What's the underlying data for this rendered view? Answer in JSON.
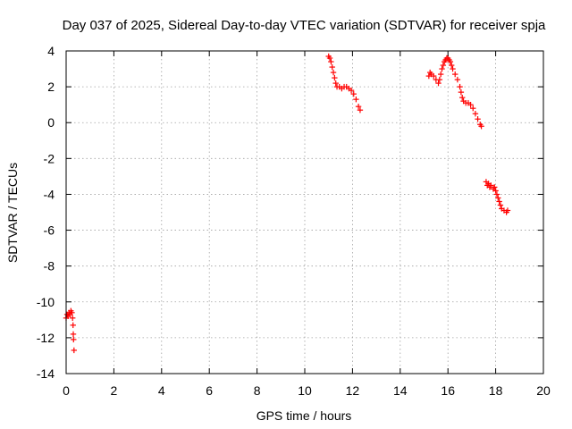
{
  "chart_data": {
    "type": "scatter",
    "title": "Day 037 of 2025, Sidereal Day-to-day VTEC variation (SDTVAR) for receiver spja",
    "xlabel": "GPS time / hours",
    "ylabel": "SDTVAR / TECUs",
    "xlim": [
      0,
      20
    ],
    "ylim": [
      -14,
      4
    ],
    "grid": true,
    "marker_color": "#ff0000",
    "x_ticks": [
      {
        "value": 0,
        "label": "0"
      },
      {
        "value": 2,
        "label": "2"
      },
      {
        "value": 4,
        "label": "4"
      },
      {
        "value": 6,
        "label": "6"
      },
      {
        "value": 8,
        "label": "8"
      },
      {
        "value": 10,
        "label": "10"
      },
      {
        "value": 12,
        "label": "12"
      },
      {
        "value": 14,
        "label": "14"
      },
      {
        "value": 16,
        "label": "16"
      },
      {
        "value": 18,
        "label": "18"
      },
      {
        "value": 20,
        "label": "20"
      }
    ],
    "y_ticks": [
      {
        "value": 4,
        "label": "4"
      },
      {
        "value": 2,
        "label": "2"
      },
      {
        "value": 0,
        "label": "0"
      },
      {
        "value": -2,
        "label": "-2"
      },
      {
        "value": -4,
        "label": "-4"
      },
      {
        "value": -6,
        "label": "-6"
      },
      {
        "value": -8,
        "label": "-8"
      },
      {
        "value": -10,
        "label": "-10"
      },
      {
        "value": -12,
        "label": "-12"
      },
      {
        "value": -14,
        "label": "-14"
      }
    ],
    "series": [
      {
        "name": "SDTVAR",
        "points": [
          [
            0.0,
            -10.9
          ],
          [
            0.04,
            -10.7
          ],
          [
            0.08,
            -10.8
          ],
          [
            0.12,
            -10.6
          ],
          [
            0.16,
            -10.7
          ],
          [
            0.2,
            -10.5
          ],
          [
            0.24,
            -10.6
          ],
          [
            0.27,
            -10.9
          ],
          [
            0.29,
            -11.3
          ],
          [
            0.3,
            -11.8
          ],
          [
            0.31,
            -12.1
          ],
          [
            0.33,
            -12.7
          ],
          [
            11.0,
            3.7
          ],
          [
            11.05,
            3.6
          ],
          [
            11.1,
            3.4
          ],
          [
            11.15,
            3.1
          ],
          [
            11.2,
            2.8
          ],
          [
            11.25,
            2.5
          ],
          [
            11.3,
            2.2
          ],
          [
            11.35,
            2.0
          ],
          [
            11.45,
            2.0
          ],
          [
            11.55,
            1.9
          ],
          [
            11.65,
            2.0
          ],
          [
            11.75,
            2.0
          ],
          [
            11.85,
            1.9
          ],
          [
            11.95,
            1.8
          ],
          [
            12.05,
            1.6
          ],
          [
            12.15,
            1.3
          ],
          [
            12.25,
            0.9
          ],
          [
            12.32,
            0.7
          ],
          [
            15.2,
            2.6
          ],
          [
            15.25,
            2.8
          ],
          [
            15.3,
            2.7
          ],
          [
            15.4,
            2.6
          ],
          [
            15.5,
            2.4
          ],
          [
            15.6,
            2.2
          ],
          [
            15.65,
            2.4
          ],
          [
            15.7,
            2.7
          ],
          [
            15.75,
            3.0
          ],
          [
            15.8,
            3.2
          ],
          [
            15.85,
            3.4
          ],
          [
            15.9,
            3.5
          ],
          [
            15.95,
            3.6
          ],
          [
            16.0,
            3.6
          ],
          [
            16.05,
            3.5
          ],
          [
            16.1,
            3.4
          ],
          [
            16.15,
            3.2
          ],
          [
            16.2,
            3.0
          ],
          [
            16.3,
            2.7
          ],
          [
            16.4,
            2.4
          ],
          [
            16.5,
            2.0
          ],
          [
            16.55,
            1.7
          ],
          [
            16.6,
            1.4
          ],
          [
            16.65,
            1.2
          ],
          [
            16.75,
            1.1
          ],
          [
            16.85,
            1.1
          ],
          [
            16.95,
            1.0
          ],
          [
            17.05,
            0.8
          ],
          [
            17.15,
            0.5
          ],
          [
            17.25,
            0.2
          ],
          [
            17.35,
            -0.1
          ],
          [
            17.4,
            -0.2
          ],
          [
            17.6,
            -3.3
          ],
          [
            17.65,
            -3.5
          ],
          [
            17.7,
            -3.4
          ],
          [
            17.75,
            -3.6
          ],
          [
            17.8,
            -3.5
          ],
          [
            17.9,
            -3.7
          ],
          [
            17.95,
            -3.6
          ],
          [
            18.0,
            -3.8
          ],
          [
            18.05,
            -4.0
          ],
          [
            18.1,
            -4.2
          ],
          [
            18.15,
            -4.4
          ],
          [
            18.2,
            -4.6
          ],
          [
            18.25,
            -4.8
          ],
          [
            18.35,
            -4.9
          ],
          [
            18.45,
            -5.0
          ],
          [
            18.5,
            -4.9
          ]
        ]
      }
    ]
  }
}
